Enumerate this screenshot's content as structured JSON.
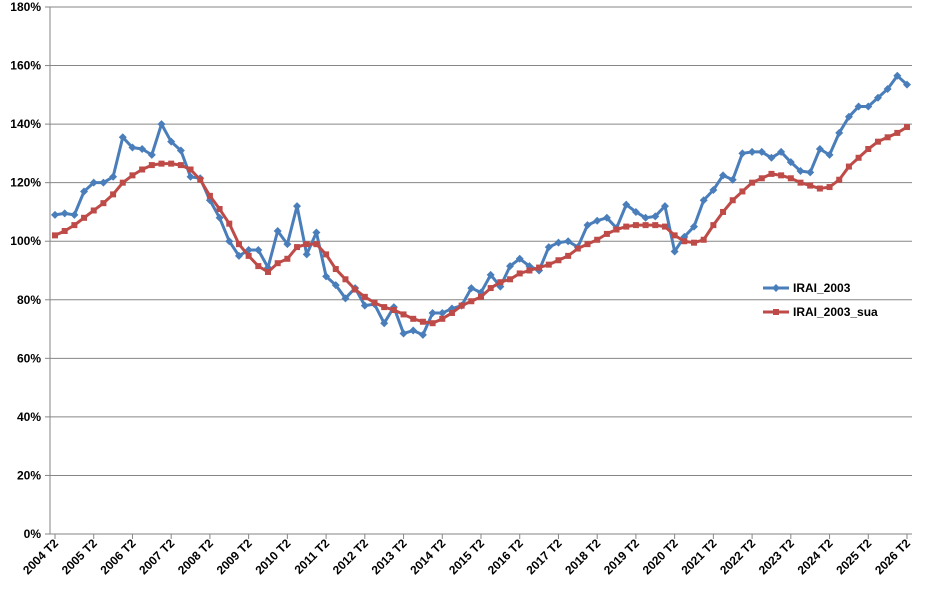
{
  "chart_data": {
    "type": "line",
    "categories": [
      "2004 T2",
      null,
      null,
      null,
      "2005 T2",
      null,
      null,
      null,
      "2006 T2",
      null,
      null,
      null,
      "2007 T2",
      null,
      null,
      null,
      "2008 T2",
      null,
      null,
      null,
      "2009 T2",
      null,
      null,
      null,
      "2010 T2",
      null,
      null,
      null,
      "2011 T2",
      null,
      null,
      null,
      "2012 T2",
      null,
      null,
      null,
      "2013 T2",
      null,
      null,
      null,
      "2014 T2",
      null,
      null,
      null,
      "2015 T2",
      null,
      null,
      null,
      "2016 T2",
      null,
      null,
      null,
      "2017 T2",
      null,
      null,
      null,
      "2018 T2",
      null,
      null,
      null,
      "2019 T2",
      null,
      null,
      null,
      "2020 T2",
      null,
      null,
      null,
      "2021 T2",
      null,
      null,
      null,
      "2022 T2",
      null,
      null,
      null,
      "2023 T2",
      null,
      null,
      null,
      "2024 T2",
      null,
      null,
      null,
      "2025 T2",
      null,
      null,
      null,
      "2026 T2"
    ],
    "series": [
      {
        "name": "IRAI_2003",
        "color": "#4a7ebb",
        "marker": "diamond",
        "values": [
          109,
          109.5,
          109,
          117,
          120,
          120,
          122,
          135.5,
          132,
          131.5,
          129.5,
          140,
          134,
          131,
          122,
          121.5,
          114,
          108,
          100,
          95,
          97,
          97,
          91,
          103.5,
          99,
          112,
          95.5,
          103,
          88,
          85,
          80.5,
          84,
          78,
          78.5,
          72,
          77.5,
          68.5,
          69.5,
          68,
          75.5,
          75.5,
          77,
          78,
          84,
          82.5,
          88.5,
          84.5,
          91.5,
          94,
          91.5,
          90,
          98,
          99.5,
          100,
          98,
          105.5,
          107,
          108,
          104.5,
          112.5,
          110,
          108,
          108.5,
          112,
          96.5,
          101.5,
          105,
          114,
          117.5,
          122.5,
          121,
          130,
          130.5,
          130.5,
          128.5,
          130.5,
          127,
          124,
          123.5,
          131.5,
          129.5,
          137,
          142.5,
          146,
          146,
          149,
          152,
          156.5,
          153.5
        ]
      },
      {
        "name": "IRAI_2003_sua",
        "color": "#be4b48",
        "marker": "square",
        "values": [
          102,
          103.5,
          105.5,
          108,
          110.5,
          113,
          116,
          120,
          122.5,
          124.5,
          126,
          126.5,
          126.5,
          126,
          124.5,
          121,
          115.5,
          111,
          106,
          99,
          95,
          91.5,
          89.5,
          92.5,
          94,
          98,
          99,
          99,
          95.5,
          90.5,
          87,
          83.5,
          81,
          79,
          77.5,
          76.5,
          75,
          73.5,
          72.5,
          72,
          73.5,
          75.5,
          78,
          79.5,
          81,
          84,
          86,
          87,
          89,
          90,
          91,
          92,
          93.5,
          95,
          97.5,
          99,
          100.5,
          102.5,
          104,
          105,
          105.5,
          105.5,
          105.5,
          105,
          102,
          100,
          99.5,
          100.5,
          105.5,
          110,
          114,
          117,
          120,
          121.5,
          123,
          122.5,
          121.5,
          120,
          119,
          118,
          118.5,
          121,
          125.5,
          128.5,
          131.5,
          134,
          135.5,
          137,
          139
        ]
      }
    ],
    "ylim": [
      0,
      180
    ],
    "yticks": [
      {
        "value": 0,
        "label": "0%"
      },
      {
        "value": 20,
        "label": "20%"
      },
      {
        "value": 40,
        "label": "40%"
      },
      {
        "value": 60,
        "label": "60%"
      },
      {
        "value": 80,
        "label": "80%"
      },
      {
        "value": 100,
        "label": "100%"
      },
      {
        "value": 120,
        "label": "120%"
      },
      {
        "value": 140,
        "label": "140%"
      },
      {
        "value": 160,
        "label": "160%"
      },
      {
        "value": 180,
        "label": "180%"
      }
    ],
    "grid": true,
    "legend": "right"
  }
}
